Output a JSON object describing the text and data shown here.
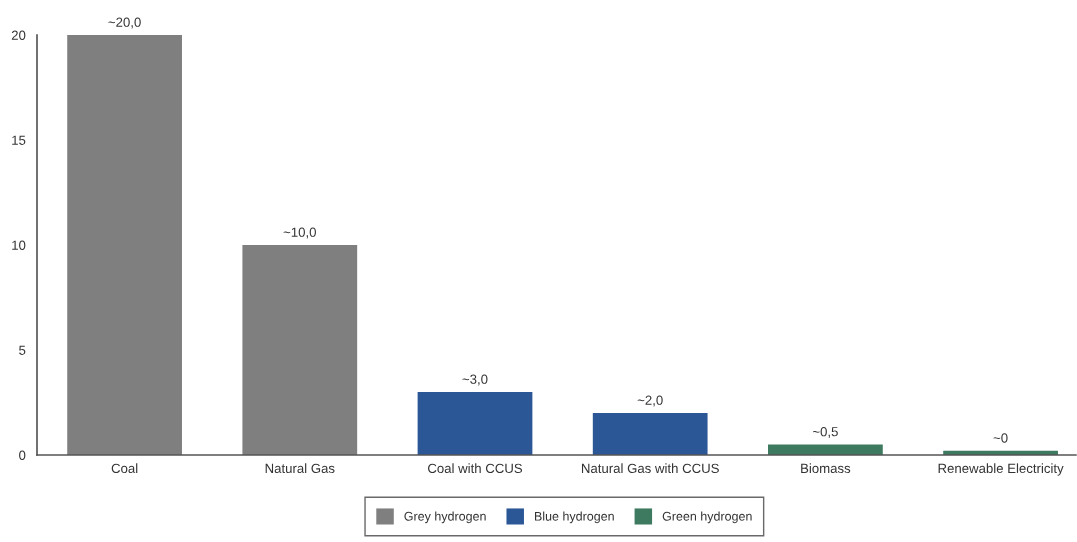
{
  "chart_data": {
    "type": "bar",
    "categories": [
      "Coal",
      "Natural Gas",
      "Coal with CCUS",
      "Natural Gas with CCUS",
      "Biomass",
      "Renewable Electricity"
    ],
    "series": [
      {
        "name": "Grey hydrogen",
        "color": "#7f7f7f",
        "values": [
          20,
          10,
          null,
          null,
          null,
          null
        ],
        "value_labels": [
          "~20,0",
          "~10,0",
          null,
          null,
          null,
          null
        ]
      },
      {
        "name": "Blue hydrogen",
        "color": "#2b5797",
        "values": [
          null,
          null,
          3,
          2,
          null,
          null
        ],
        "value_labels": [
          null,
          null,
          "~3,0",
          "~2,0",
          null,
          null
        ]
      },
      {
        "name": "Green hydrogen",
        "color": "#3d7a5f",
        "values": [
          null,
          null,
          null,
          null,
          0.5,
          0.2
        ],
        "value_labels": [
          null,
          null,
          null,
          null,
          "~0,5",
          "~0"
        ]
      }
    ],
    "stacked": true,
    "ylim": [
      0,
      20
    ],
    "yticks": [
      0,
      5,
      10,
      15,
      20
    ],
    "grid": false,
    "legend": "bottom"
  }
}
